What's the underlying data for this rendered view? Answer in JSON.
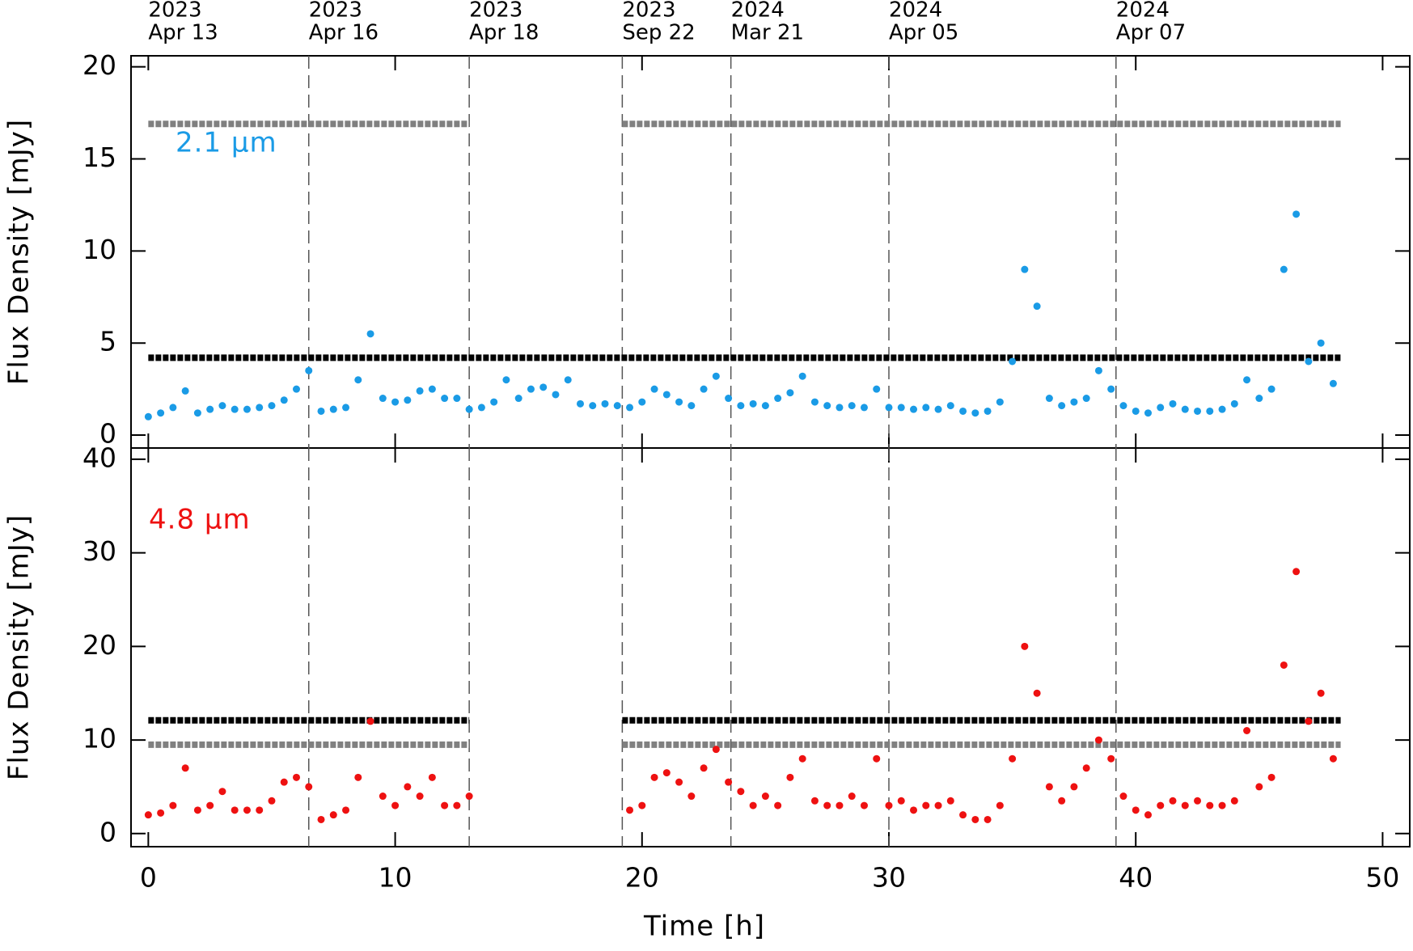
{
  "chart_data": [
    {
      "type": "scatter",
      "ylabel": "Flux Density [mJy]",
      "xlim": [
        -0.7,
        51.1
      ],
      "ylim": [
        -0.7,
        20.6
      ],
      "yticks": [
        0,
        5,
        10,
        15,
        20
      ],
      "epochs": [
        {
          "x": 0,
          "year": "2023",
          "date": "Apr 13"
        },
        {
          "x": 6.5,
          "year": "2023",
          "date": "Apr 16"
        },
        {
          "x": 13,
          "year": "2023",
          "date": "Apr 18"
        },
        {
          "x": 19.2,
          "year": "2023",
          "date": "Sep 22"
        },
        {
          "x": 23.6,
          "year": "2024",
          "date": "Mar 21"
        },
        {
          "x": 30,
          "year": "2024",
          "date": "Apr 05"
        },
        {
          "x": 39.2,
          "year": "2024",
          "date": "Apr 07"
        }
      ],
      "x": [
        0,
        0.5,
        1,
        1.5,
        2,
        2.5,
        3,
        3.5,
        4,
        4.5,
        5,
        5.5,
        6,
        6.5,
        7,
        7.5,
        8,
        8.5,
        9,
        9.5,
        10,
        10.5,
        11,
        11.5,
        12,
        12.5,
        13,
        13.5,
        14,
        14.5,
        15,
        15.5,
        16,
        16.5,
        17,
        17.5,
        18,
        18.5,
        19,
        19.5,
        20,
        20.5,
        21,
        21.5,
        22,
        22.5,
        23,
        23.5,
        24,
        24.5,
        25,
        25.5,
        26,
        26.5,
        27,
        27.5,
        28,
        28.5,
        29,
        29.5,
        30,
        30.5,
        31,
        31.5,
        32,
        32.5,
        33,
        33.5,
        34,
        34.5,
        35,
        35.5,
        36,
        36.5,
        37,
        37.5,
        38,
        38.5,
        39,
        39.5,
        40,
        40.5,
        41,
        41.5,
        42,
        42.5,
        43,
        43.5,
        44,
        44.5,
        45,
        45.5,
        46,
        46.5,
        47,
        47.5,
        48
      ],
      "series": [
        {
          "color": "#808080",
          "x": [
            0,
            13
          ],
          "values": [
            16.9,
            16.9
          ]
        },
        {
          "color": "#808080",
          "x": [
            19.2,
            48.3
          ],
          "values": [
            16.9,
            16.9
          ]
        },
        {
          "color": "#000000",
          "x": [
            0,
            48.3
          ],
          "values": [
            4.2,
            4.2
          ]
        },
        {
          "name": "2.1 μm",
          "color": "#1a9be6",
          "values": [
            1.0,
            1.2,
            1.5,
            2.4,
            1.2,
            1.4,
            1.6,
            1.4,
            1.4,
            1.5,
            1.6,
            1.9,
            2.5,
            3.5,
            1.3,
            1.4,
            1.5,
            3.0,
            5.5,
            2.0,
            1.8,
            1.9,
            2.4,
            2.5,
            2.0,
            2.0,
            1.4,
            1.5,
            1.8,
            3.0,
            2.0,
            2.5,
            2.6,
            2.2,
            3.0,
            1.7,
            1.6,
            1.7,
            1.6,
            1.5,
            1.8,
            2.5,
            2.2,
            1.8,
            1.6,
            2.5,
            3.2,
            2.0,
            1.6,
            1.7,
            1.6,
            2.0,
            2.3,
            3.2,
            1.8,
            1.6,
            1.5,
            1.6,
            1.5,
            2.5,
            1.5,
            1.5,
            1.4,
            1.5,
            1.4,
            1.6,
            1.3,
            1.2,
            1.3,
            1.8,
            4.0,
            9.0,
            7.0,
            2.0,
            1.6,
            1.8,
            2.0,
            3.5,
            2.5,
            1.6,
            1.3,
            1.2,
            1.5,
            1.7,
            1.4,
            1.3,
            1.3,
            1.4,
            1.7,
            3.0,
            2.0,
            2.5,
            9.0,
            12.0,
            4.0,
            5.0,
            2.8
          ]
        }
      ]
    },
    {
      "type": "scatter",
      "ylabel": "Flux Density [mJy]",
      "xlabel": "Time [h]",
      "xlim": [
        -0.7,
        51.1
      ],
      "ylim": [
        -1.4,
        41.2
      ],
      "xticks": [
        0,
        10,
        20,
        30,
        40,
        50
      ],
      "yticks": [
        0,
        10,
        20,
        30,
        40
      ],
      "x": [
        0,
        0.5,
        1,
        1.5,
        2,
        2.5,
        3,
        3.5,
        4,
        4.5,
        5,
        5.5,
        6,
        6.5,
        7,
        7.5,
        8,
        8.5,
        9,
        9.5,
        10,
        10.5,
        11,
        11.5,
        12,
        12.5,
        13,
        13.5,
        14,
        14.5,
        15,
        15.5,
        16,
        16.5,
        17,
        17.5,
        18,
        18.5,
        19,
        19.5,
        20,
        20.5,
        21,
        21.5,
        22,
        22.5,
        23,
        23.5,
        24,
        24.5,
        25,
        25.5,
        26,
        26.5,
        27,
        27.5,
        28,
        28.5,
        29,
        29.5,
        30,
        30.5,
        31,
        31.5,
        32,
        32.5,
        33,
        33.5,
        34,
        34.5,
        35,
        35.5,
        36,
        36.5,
        37,
        37.5,
        38,
        38.5,
        39,
        39.5,
        40,
        40.5,
        41,
        41.5,
        42,
        42.5,
        43,
        43.5,
        44,
        44.5,
        45,
        45.5,
        46,
        46.5,
        47,
        47.5,
        48
      ],
      "series": [
        {
          "color": "#000000",
          "x": [
            0,
            13
          ],
          "values": [
            12.1,
            12.1
          ]
        },
        {
          "color": "#000000",
          "x": [
            19.2,
            48.3
          ],
          "values": [
            12.1,
            12.1
          ]
        },
        {
          "color": "#808080",
          "x": [
            0,
            13
          ],
          "values": [
            9.5,
            9.5
          ]
        },
        {
          "color": "#808080",
          "x": [
            19.2,
            48.3
          ],
          "values": [
            9.5,
            9.5
          ]
        },
        {
          "name": "4.8 μm",
          "color": "#ee1111",
          "values": [
            2.0,
            2.2,
            3.0,
            7.0,
            2.5,
            3.0,
            4.5,
            2.5,
            2.5,
            2.5,
            3.5,
            5.5,
            6.0,
            5.0,
            1.5,
            2.0,
            2.5,
            6.0,
            12.0,
            4.0,
            3.0,
            5.0,
            4.0,
            6.0,
            3.0,
            3.0,
            4.0,
            null,
            null,
            null,
            null,
            null,
            null,
            null,
            null,
            null,
            null,
            null,
            null,
            2.5,
            3.0,
            6.0,
            6.5,
            5.5,
            4.0,
            7.0,
            9.0,
            5.5,
            4.5,
            3.0,
            4.0,
            3.0,
            6.0,
            8.0,
            3.5,
            3.0,
            3.0,
            4.0,
            3.0,
            8.0,
            3.0,
            3.5,
            2.5,
            3.0,
            3.0,
            3.5,
            2.0,
            1.5,
            1.5,
            3.0,
            8.0,
            20.0,
            15.0,
            5.0,
            3.5,
            5.0,
            7.0,
            10.0,
            8.0,
            4.0,
            2.5,
            2.0,
            3.0,
            3.5,
            3.0,
            3.5,
            3.0,
            3.0,
            3.5,
            11.0,
            5.0,
            6.0,
            18.0,
            28.0,
            12.0,
            15.0,
            8.0
          ]
        }
      ]
    }
  ]
}
